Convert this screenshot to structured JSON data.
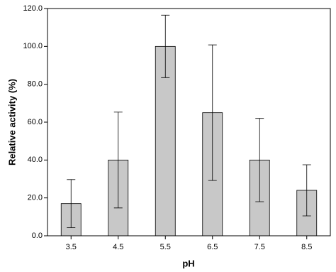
{
  "chart_data": {
    "type": "bar",
    "x_label": "pH",
    "y_label": "Relative activity (%)",
    "categories": [
      "3.5",
      "4.5",
      "5.5",
      "6.5",
      "7.5",
      "8.5"
    ],
    "values": [
      17,
      40,
      100,
      65,
      40,
      24
    ],
    "errors": [
      12.7,
      25.3,
      16.5,
      35.8,
      22,
      13.5
    ],
    "color": "#c8c8c8",
    "ylim": [
      0,
      120
    ],
    "yticks": [
      {
        "value": 0,
        "label": "0.0"
      },
      {
        "value": 20,
        "label": "20.0"
      },
      {
        "value": 40,
        "label": "40.0"
      },
      {
        "value": 60,
        "label": "60.0"
      },
      {
        "value": 80,
        "label": "80.0"
      },
      {
        "value": 100,
        "label": "100.0"
      },
      {
        "value": 120,
        "label": "120.0"
      }
    ],
    "grid": false
  }
}
